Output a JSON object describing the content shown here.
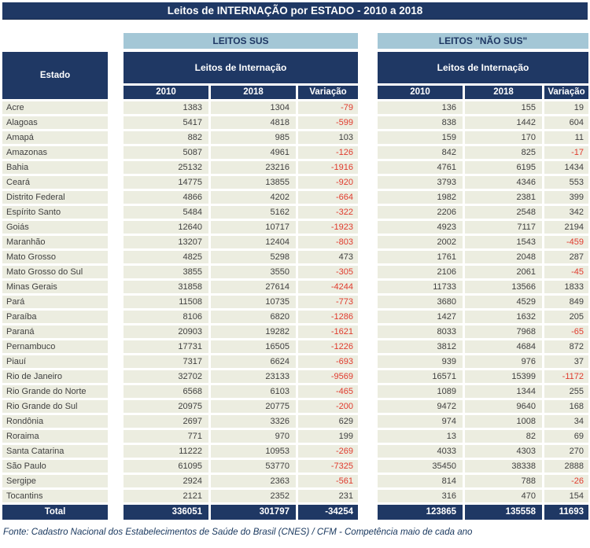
{
  "title": "Leitos de INTERNAÇÃO por ESTADO - 2010 a 2018",
  "header": {
    "estado_label": "Estado",
    "sus_label": "LEITOS SUS",
    "nao_sus_label": "LEITOS \"NÃO SUS\"",
    "subheader": "Leitos de Internação",
    "col_headers": [
      "2010",
      "2018",
      "Variação"
    ]
  },
  "colors": {
    "navy": "#1F3864",
    "light_blue": "#A4C7D6",
    "row_bg": "#ECEDE0",
    "negative_red": "#E03A2D",
    "text": "#3F3F3F"
  },
  "footer": "Fonte: Cadastro Nacional dos Estabelecimentos de Saúde do Brasil (CNES) / CFM - Competência maio de cada ano",
  "chart_data": {
    "type": "table",
    "title": "Leitos de INTERNAÇÃO por ESTADO - 2010 a 2018",
    "column_groups": [
      {
        "label": "LEITOS SUS",
        "subheader": "Leitos de Internação",
        "columns": [
          "2010",
          "2018",
          "Variação"
        ]
      },
      {
        "label": "LEITOS \"NÃO SUS\"",
        "subheader": "Leitos de Internação",
        "columns": [
          "2010",
          "2018",
          "Variação"
        ]
      }
    ],
    "columns": [
      "Estado",
      "SUS 2010",
      "SUS 2018",
      "SUS Variação",
      "NÃO SUS 2010",
      "NÃO SUS 2018",
      "NÃO SUS Variação"
    ],
    "rows": [
      [
        "Acre",
        1383,
        1304,
        -79,
        136,
        155,
        19
      ],
      [
        "Alagoas",
        5417,
        4818,
        -599,
        838,
        1442,
        604
      ],
      [
        "Amapá",
        882,
        985,
        103,
        159,
        170,
        11
      ],
      [
        "Amazonas",
        5087,
        4961,
        -126,
        842,
        825,
        -17
      ],
      [
        "Bahia",
        25132,
        23216,
        -1916,
        4761,
        6195,
        1434
      ],
      [
        "Ceará",
        14775,
        13855,
        -920,
        3793,
        4346,
        553
      ],
      [
        "Distrito Federal",
        4866,
        4202,
        -664,
        1982,
        2381,
        399
      ],
      [
        "Espírito Santo",
        5484,
        5162,
        -322,
        2206,
        2548,
        342
      ],
      [
        "Goiás",
        12640,
        10717,
        -1923,
        4923,
        7117,
        2194
      ],
      [
        "Maranhão",
        13207,
        12404,
        -803,
        2002,
        1543,
        -459
      ],
      [
        "Mato Grosso",
        4825,
        5298,
        473,
        1761,
        2048,
        287
      ],
      [
        "Mato Grosso do Sul",
        3855,
        3550,
        -305,
        2106,
        2061,
        -45
      ],
      [
        "Minas Gerais",
        31858,
        27614,
        -4244,
        11733,
        13566,
        1833
      ],
      [
        "Pará",
        11508,
        10735,
        -773,
        3680,
        4529,
        849
      ],
      [
        "Paraíba",
        8106,
        6820,
        -1286,
        1427,
        1632,
        205
      ],
      [
        "Paraná",
        20903,
        19282,
        -1621,
        8033,
        7968,
        -65
      ],
      [
        "Pernambuco",
        17731,
        16505,
        -1226,
        3812,
        4684,
        872
      ],
      [
        "Piauí",
        7317,
        6624,
        -693,
        939,
        976,
        37
      ],
      [
        "Rio de Janeiro",
        32702,
        23133,
        -9569,
        16571,
        15399,
        -1172
      ],
      [
        "Rio Grande do Norte",
        6568,
        6103,
        -465,
        1089,
        1344,
        255
      ],
      [
        "Rio Grande do Sul",
        20975,
        20775,
        -200,
        9472,
        9640,
        168
      ],
      [
        "Rondônia",
        2697,
        3326,
        629,
        974,
        1008,
        34
      ],
      [
        "Roraima",
        771,
        970,
        199,
        13,
        82,
        69
      ],
      [
        "Santa Catarina",
        11222,
        10953,
        -269,
        4033,
        4303,
        270
      ],
      [
        "São Paulo",
        61095,
        53770,
        -7325,
        35450,
        38338,
        2888
      ],
      [
        "Sergipe",
        2924,
        2363,
        -561,
        814,
        788,
        -26
      ],
      [
        "Tocantins",
        2121,
        2352,
        231,
        316,
        470,
        154
      ]
    ],
    "total": [
      "Total",
      336051,
      301797,
      -34254,
      123865,
      135558,
      11693
    ]
  }
}
